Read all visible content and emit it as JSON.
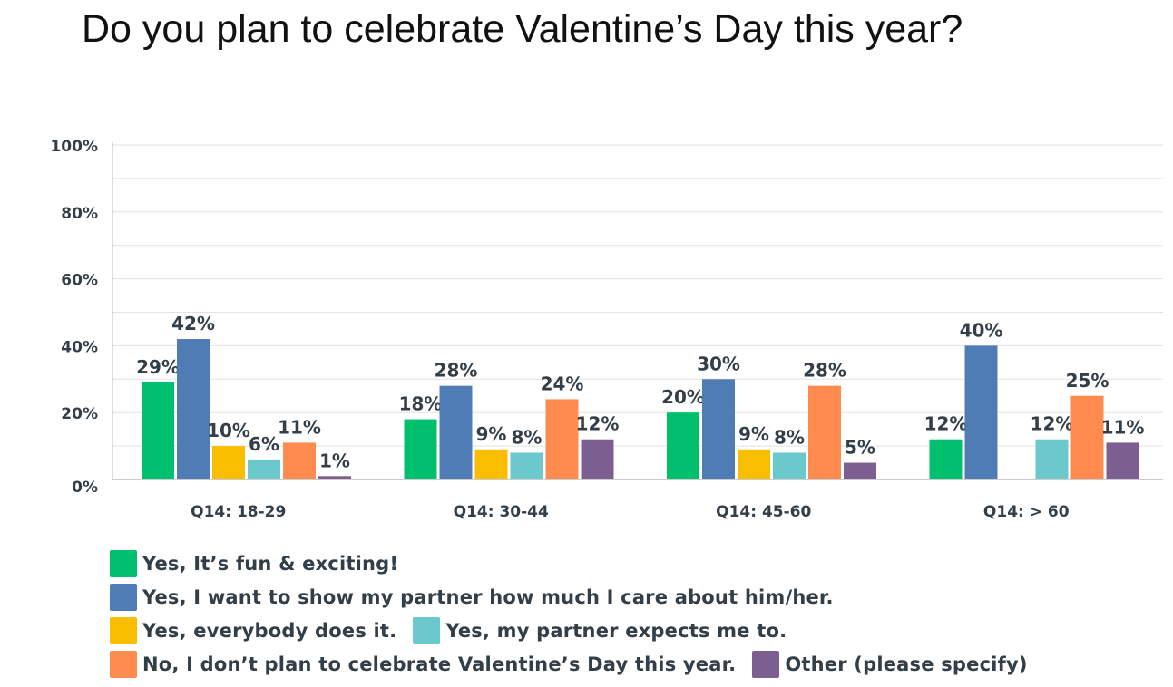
{
  "title": "Do you plan to celebrate Valentine’s Day this year?",
  "chart_data": {
    "type": "bar",
    "title": "Do you plan to celebrate Valentine’s Day this year?",
    "categories": [
      "Q14: 18-29",
      "Q14: 30-44",
      "Q14: 45-60",
      "Q14: > 60"
    ],
    "series": [
      {
        "name": "Yes, It’s fun & exciting!",
        "color": "#00bf6f",
        "values": [
          29,
          18,
          20,
          12
        ]
      },
      {
        "name": "Yes, I want to show my partner how much I care about him/her.",
        "color": "#507cb6",
        "values": [
          42,
          28,
          30,
          40
        ]
      },
      {
        "name": "Yes, everybody does it.",
        "color": "#f9be00",
        "values": [
          10,
          9,
          9,
          0
        ]
      },
      {
        "name": "Yes, my partner expects me to.",
        "color": "#6bc8cd",
        "values": [
          6,
          8,
          8,
          12
        ]
      },
      {
        "name": "No, I don’t plan to celebrate Valentine’s Day this year.",
        "color": "#ff8b4f",
        "values": [
          11,
          24,
          28,
          25
        ]
      },
      {
        "name": "Other (please specify)",
        "color": "#7d5e90",
        "values": [
          1,
          12,
          5,
          11
        ]
      }
    ],
    "data_labels": [
      [
        "29%",
        "18%",
        "20%",
        "12%"
      ],
      [
        "42%",
        "28%",
        "30%",
        "40%"
      ],
      [
        "10%",
        "9%",
        "9%",
        ""
      ],
      [
        "6%",
        "8%",
        "8%",
        "12%"
      ],
      [
        "11%",
        "24%",
        "28%",
        "25%"
      ],
      [
        "1%",
        "12%",
        "5%",
        "11%"
      ]
    ],
    "ylim": [
      0,
      100
    ],
    "yticks": [
      0,
      20,
      40,
      60,
      80,
      100
    ],
    "ytick_labels": [
      "0%",
      "20%",
      "40%",
      "60%",
      "80%",
      "100%"
    ],
    "grid": true,
    "legend_position": "bottom"
  },
  "legend": {
    "rows": [
      [
        0
      ],
      [
        1
      ],
      [
        2,
        3
      ],
      [
        4,
        5
      ]
    ]
  }
}
